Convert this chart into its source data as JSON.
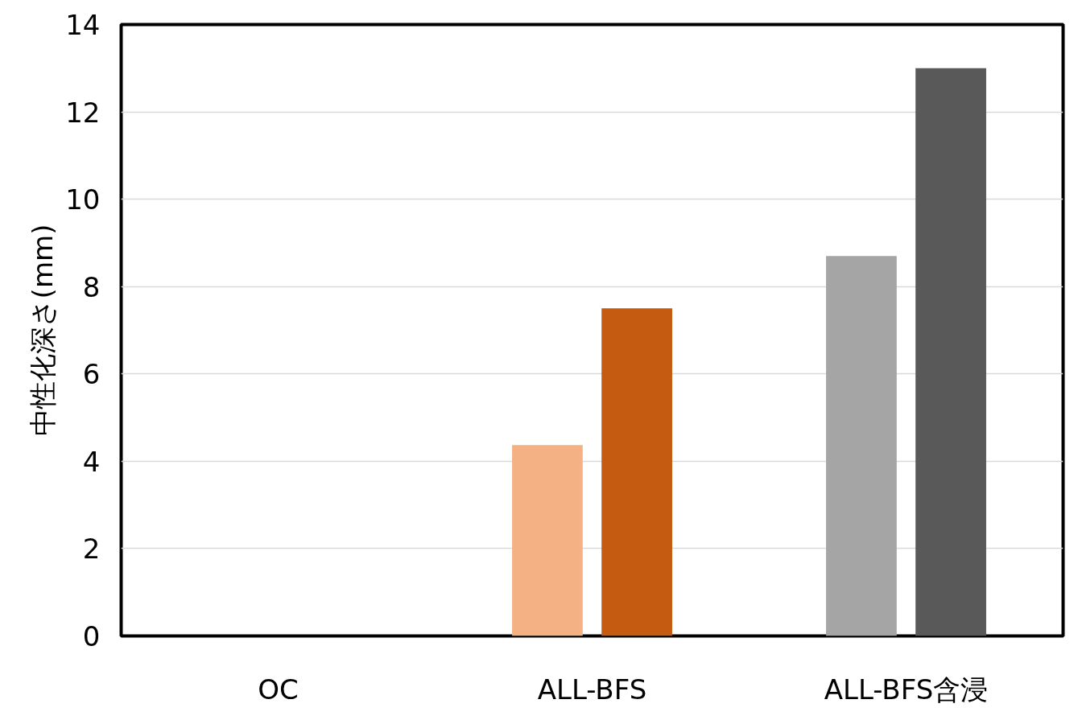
{
  "chart_data": {
    "type": "bar",
    "ylabel": "中性化深さ(mm)",
    "categories": [
      "OC",
      "ALL-BFS",
      "ALL-BFS含浸"
    ],
    "series": [
      {
        "colors": [
          null,
          "#f4b183",
          "#a5a5a5"
        ],
        "values": [
          null,
          4.37,
          8.7
        ]
      },
      {
        "colors": [
          null,
          "#c55a11",
          "#595959"
        ],
        "values": [
          null,
          7.5,
          13.0
        ]
      }
    ],
    "ylim": [
      0,
      14
    ],
    "yticks": [
      0,
      2,
      4,
      6,
      8,
      10,
      12,
      14
    ],
    "grid": "y"
  }
}
